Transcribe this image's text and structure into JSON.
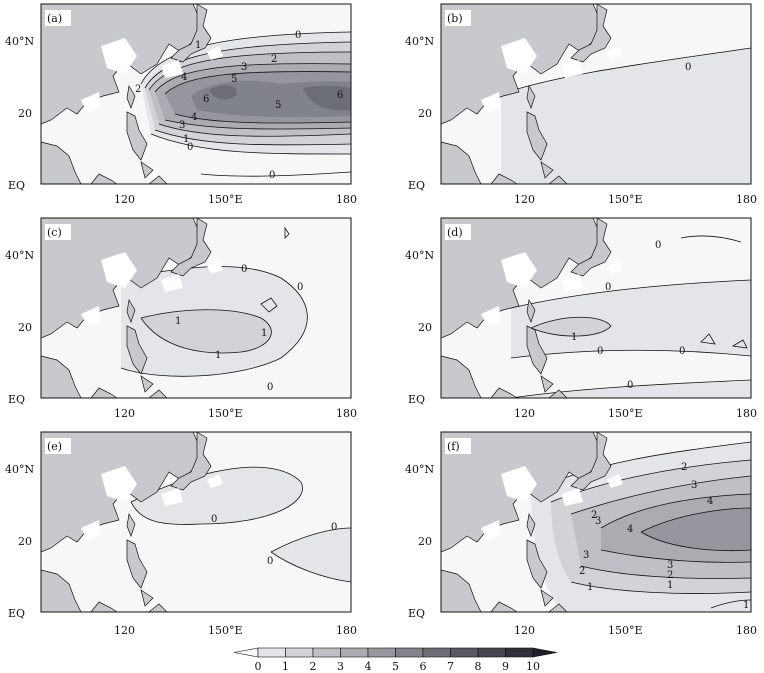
{
  "figure": {
    "axis_labels": {
      "lat": [
        "40°N",
        "20",
        "EQ"
      ],
      "lon": [
        "120",
        "150°E",
        "180"
      ]
    },
    "colorbar": {
      "ticks": [
        "0",
        "1",
        "2",
        "3",
        "4",
        "5",
        "6",
        "7",
        "8",
        "9",
        "10"
      ],
      "colors": [
        "#f7f7f7",
        "#e4e5e8",
        "#d2d3d7",
        "#bfc0c5",
        "#abacb2",
        "#96979e",
        "#81838a",
        "#6c6e76",
        "#575a62",
        "#43464f",
        "#2f323b"
      ]
    },
    "colors": {
      "land": "#c8c9cd",
      "frame": "#111111",
      "contour": "#111111"
    },
    "panels": [
      {
        "id": "(a)",
        "contour_labels": [
          "0",
          "1",
          "2",
          "3",
          "4",
          "5",
          "6",
          "5",
          "6",
          "4",
          "3",
          "2",
          "1",
          "0",
          "0"
        ]
      },
      {
        "id": "(b)",
        "contour_labels": [
          "0"
        ]
      },
      {
        "id": "(c)",
        "contour_labels": [
          "0",
          "0",
          "1",
          "1",
          "1",
          "0"
        ]
      },
      {
        "id": "(d)",
        "contour_labels": [
          "0",
          "0",
          "1",
          "0",
          "0",
          "0"
        ]
      },
      {
        "id": "(e)",
        "contour_labels": [
          "0",
          "0",
          "0"
        ]
      },
      {
        "id": "(f)",
        "contour_labels": [
          "2",
          "3",
          "4",
          "4",
          "3",
          "2",
          "1",
          "2",
          "3",
          "3",
          "2",
          "1",
          "1"
        ]
      }
    ]
  }
}
